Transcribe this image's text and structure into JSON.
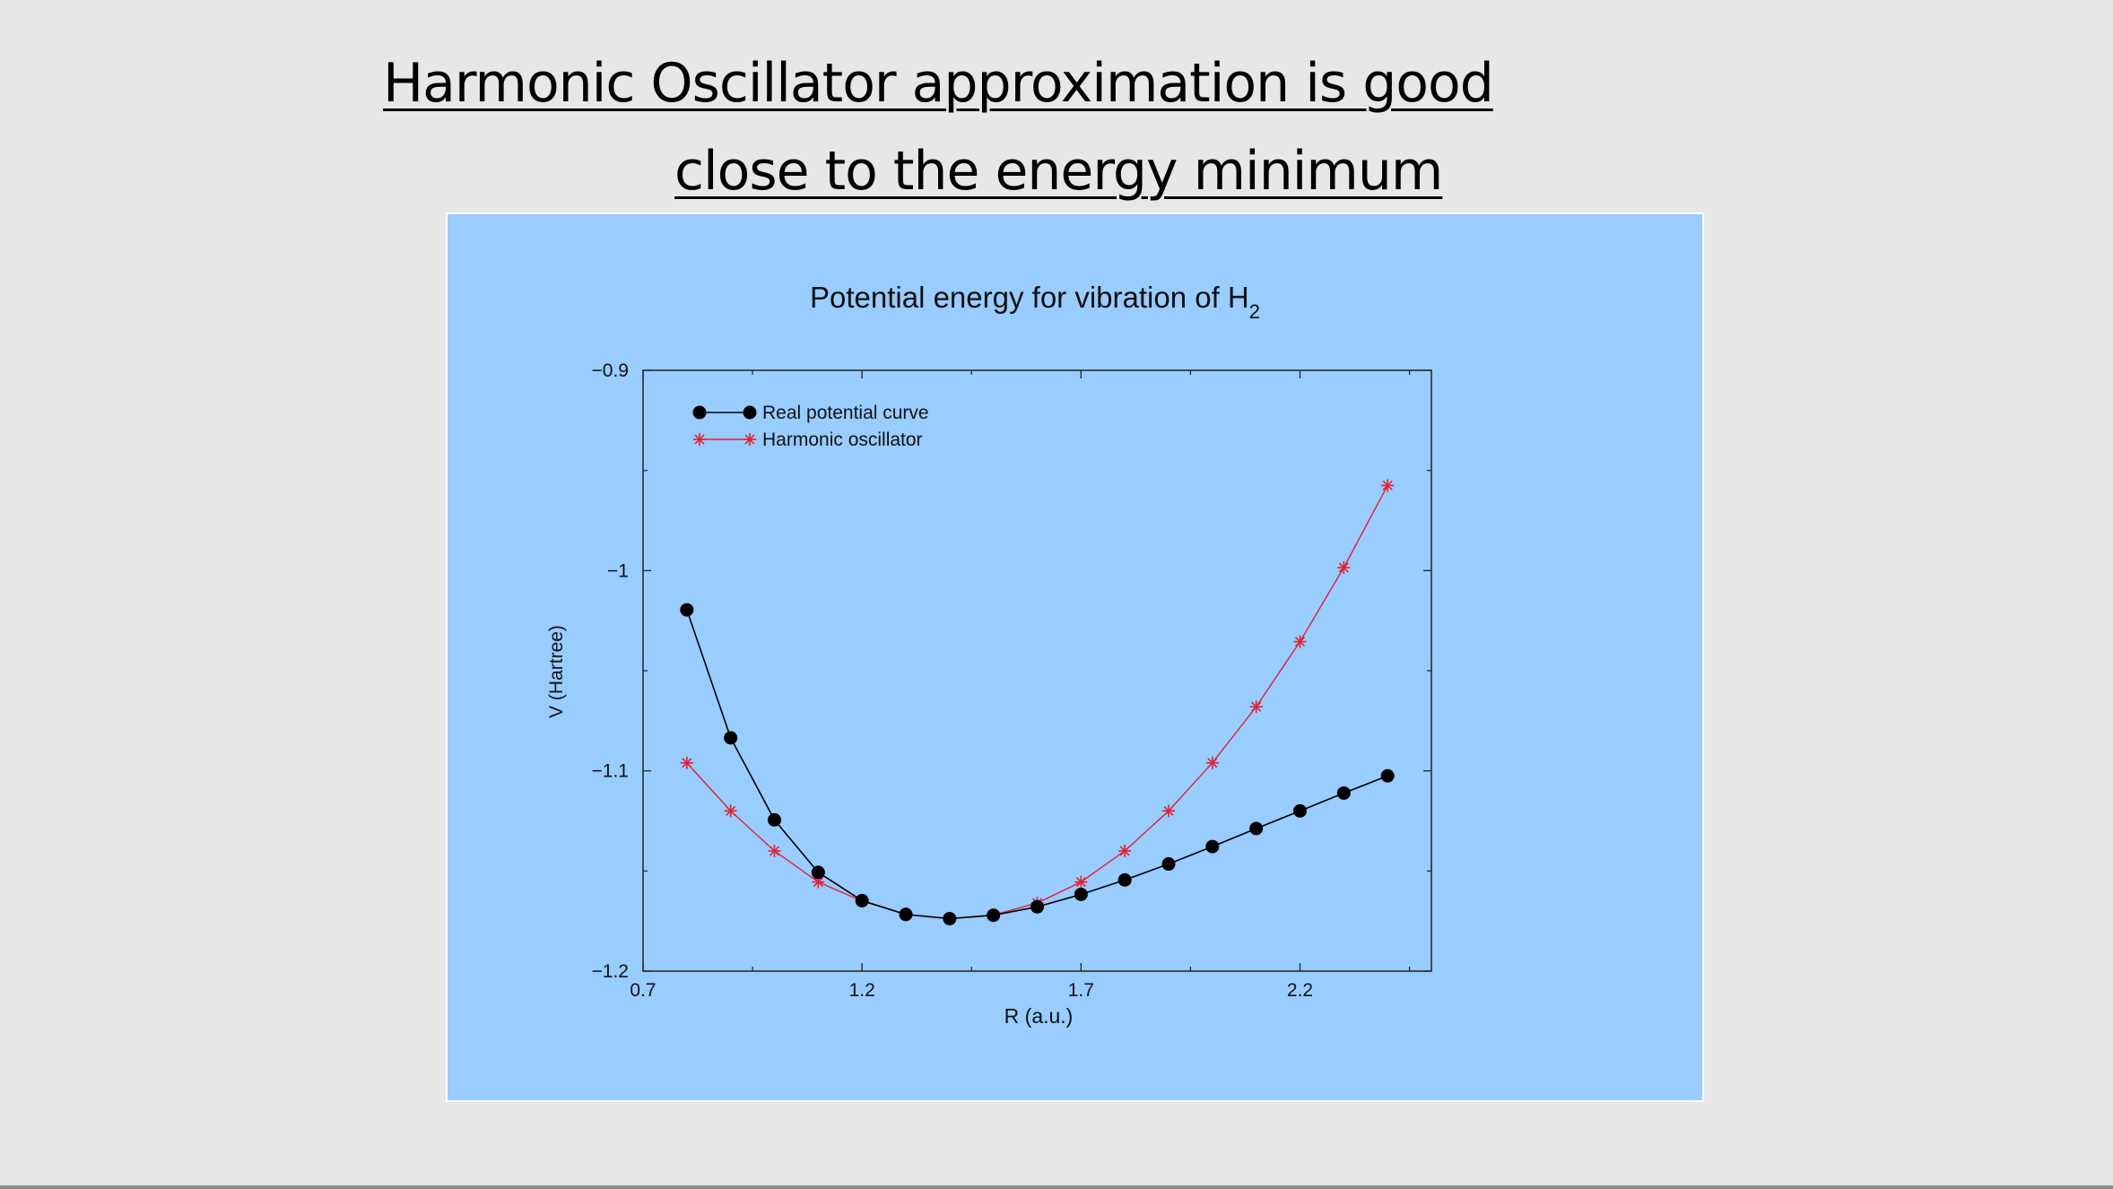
{
  "slide": {
    "title_line1": "Harmonic Oscillator approximation is good",
    "title_line2": "close to the energy minimum"
  },
  "chart_data": {
    "type": "line",
    "title": "Potential energy for vibration of H",
    "title_subscript": "2",
    "xlabel": "R (a.u.)",
    "ylabel": "V (Hartree)",
    "xlim": [
      0.7,
      2.5
    ],
    "ylim": [
      -1.2,
      -0.9
    ],
    "xticks": [
      0.7,
      1.2,
      1.7,
      2.2
    ],
    "xtick_labels": [
      "0.7",
      "1.2",
      "1.7",
      "2.2"
    ],
    "yticks": [
      -1.2,
      -1.1,
      -1,
      -0.9
    ],
    "ytick_labels": [
      "−1.2",
      "−1.1",
      "−1",
      "−0.9"
    ],
    "grid": false,
    "legend_position": "top-left",
    "x": [
      0.8,
      0.9,
      1.0,
      1.1,
      1.2,
      1.3,
      1.4,
      1.5,
      1.6,
      1.7,
      1.8,
      1.9,
      2.0,
      2.1,
      2.2,
      2.3,
      2.4
    ],
    "series": [
      {
        "name": "Real potential curve",
        "marker": "circle",
        "color": "#000000",
        "values": [
          -1.0196,
          -1.0835,
          -1.1245,
          -1.1507,
          -1.1648,
          -1.1717,
          -1.1738,
          -1.1721,
          -1.1679,
          -1.1617,
          -1.1545,
          -1.1465,
          -1.1378,
          -1.1288,
          -1.12,
          -1.1111,
          -1.1025
        ]
      },
      {
        "name": "Harmonic oscillator",
        "marker": "asterisk",
        "color": "#e2222f",
        "values": [
          -1.096,
          -1.12,
          -1.14,
          -1.1555,
          -1.165,
          -1.1717,
          -1.1738,
          -1.172,
          -1.166,
          -1.1555,
          -1.14,
          -1.12,
          -1.096,
          -1.068,
          -1.0355,
          -0.9985,
          -0.9575
        ]
      }
    ]
  }
}
